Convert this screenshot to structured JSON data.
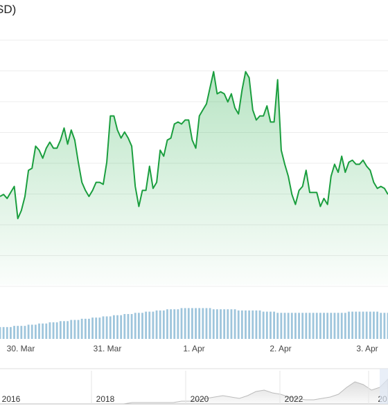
{
  "header": {
    "title_fragment": "SD)"
  },
  "colors": {
    "line": "#1a9e3e",
    "fill": "#34b356",
    "volume": "#9ec5dc",
    "grid": "#ececec",
    "navigator": "#c8c8c8"
  },
  "chart_data": [
    {
      "type": "area",
      "title": "SD)",
      "x_tick_labels": [
        "30. Mar",
        "31. Mar",
        "1. Apr",
        "2. Apr",
        "3. Apr"
      ],
      "yaxis_labels_visible": false,
      "grid": true,
      "series": [
        {
          "values": [
            44,
            45,
            43,
            46,
            49,
            33,
            37,
            44,
            57,
            58,
            69,
            67,
            63,
            68,
            71,
            68,
            68,
            72,
            78,
            70,
            77,
            72,
            61,
            51,
            47,
            44,
            47,
            51,
            51,
            50,
            61,
            84,
            84,
            77,
            73,
            76,
            73,
            69,
            49,
            39,
            47,
            47,
            59,
            48,
            51,
            67,
            64,
            72,
            73,
            80,
            81,
            80,
            82,
            82,
            72,
            68,
            84,
            87,
            90,
            98,
            106,
            95,
            96,
            95,
            91,
            95,
            88,
            85,
            97,
            106,
            103,
            87,
            82,
            84,
            84,
            89,
            81,
            81,
            102,
            67,
            60,
            54,
            45,
            40,
            47,
            49,
            57,
            46,
            46,
            46,
            39,
            43,
            40,
            54,
            60,
            56,
            64,
            56,
            61,
            62,
            60,
            60,
            62,
            59,
            57,
            51,
            48,
            49,
            48,
            45
          ]
        },
        {
          "name": "volume",
          "values": [
            10,
            10,
            10,
            10,
            11,
            11,
            11,
            11,
            12,
            12,
            12,
            13,
            13,
            13,
            14,
            14,
            14,
            15,
            15,
            15,
            16,
            16,
            16,
            17,
            17,
            17,
            18,
            18,
            18,
            19,
            19,
            19,
            20,
            20,
            20,
            21,
            21,
            21,
            22,
            22,
            22,
            23,
            23,
            23,
            24,
            24,
            24,
            25,
            25,
            25,
            25,
            26,
            26,
            26,
            26,
            26,
            26,
            26,
            26,
            26,
            25,
            25,
            25,
            25,
            25,
            25,
            25,
            24,
            24,
            24,
            24,
            24,
            24,
            24,
            23,
            23,
            23,
            23,
            22,
            22,
            22,
            22,
            22,
            22,
            22,
            22,
            22,
            22,
            22,
            22,
            22,
            22,
            22,
            22,
            22,
            22,
            22,
            22,
            23,
            23,
            23,
            23,
            23,
            23,
            23,
            23,
            23,
            22,
            22,
            22
          ]
        }
      ]
    },
    {
      "type": "area",
      "name": "navigator",
      "x_tick_labels": [
        "2016",
        "2018",
        "2020",
        "2022",
        "20"
      ],
      "values": [
        0,
        0,
        0,
        0,
        0,
        0,
        0,
        0,
        0,
        0,
        0,
        0,
        0,
        0,
        0,
        0,
        1,
        1,
        1,
        1,
        1,
        1,
        2,
        2,
        3,
        4,
        5,
        6,
        5,
        4,
        6,
        9,
        10,
        8,
        7,
        5,
        4,
        3,
        3,
        4,
        5,
        7,
        12,
        16,
        14,
        10,
        12,
        18
      ]
    }
  ]
}
